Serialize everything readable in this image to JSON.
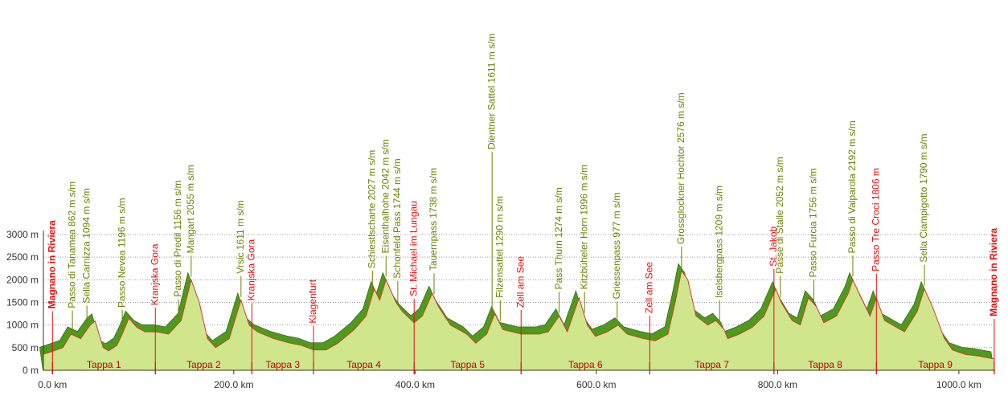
{
  "chart_data": {
    "type": "elevation-profile",
    "xlim": [
      -10,
      1040
    ],
    "ylim": [
      0,
      3000
    ],
    "xticks": [
      {
        "value": 0,
        "label": "0.0 km"
      },
      {
        "value": 200,
        "label": "200.0 km"
      },
      {
        "value": 400,
        "label": "400.0 km"
      },
      {
        "value": 600,
        "label": "600.0 km"
      },
      {
        "value": 800,
        "label": "800.0 km"
      },
      {
        "value": 1000,
        "label": "1000.0 km"
      }
    ],
    "yticks": [
      {
        "value": 0,
        "label": "0 m"
      },
      {
        "value": 500,
        "label": "500 m"
      },
      {
        "value": 1000,
        "label": "1000 m"
      },
      {
        "value": 1500,
        "label": "1500 m"
      },
      {
        "value": 2000,
        "label": "2000 m"
      },
      {
        "value": 2500,
        "label": "2500 m"
      },
      {
        "value": 3000,
        "label": "3000 m"
      }
    ],
    "grid": true,
    "fill_color": "#cfe68c",
    "shade_color": "#4e9a1c",
    "line_color": "#d83a2a",
    "profile": {
      "km": [
        -10.6,
        0,
        11.5,
        20.4,
        31,
        41.7,
        47,
        56,
        62,
        71,
        77,
        84.3,
        93,
        102,
        115,
        128,
        142,
        153,
        162,
        171,
        180,
        195,
        208,
        217,
        226,
        244,
        262,
        275,
        288,
        302,
        315,
        333,
        346,
        355,
        361,
        368,
        379,
        386,
        399,
        408,
        419,
        426,
        439,
        457,
        467,
        479,
        488,
        497,
        517,
        537,
        547,
        559,
        568,
        581,
        590,
        599,
        612,
        624,
        634,
        652,
        665,
        679,
        687,
        694,
        701,
        710,
        723,
        732,
        741,
        745,
        758,
        772,
        785,
        798,
        804,
        816,
        825,
        834,
        843,
        851,
        865,
        878,
        883,
        891,
        902,
        909,
        918,
        931,
        940,
        954,
        962,
        971,
        984,
        993,
        1007,
        1020,
        1039
      ],
      "elevation": [
        350,
        420,
        500,
        800,
        700,
        1000,
        1090,
        500,
        430,
        550,
        800,
        1150,
        950,
        850,
        850,
        800,
        1100,
        2000,
        1500,
        700,
        500,
        700,
        1550,
        1000,
        850,
        700,
        600,
        550,
        450,
        450,
        600,
        900,
        1200,
        1800,
        1550,
        2000,
        1500,
        1300,
        1050,
        1200,
        1700,
        1400,
        1000,
        800,
        600,
        800,
        1250,
        900,
        800,
        800,
        850,
        1200,
        850,
        1600,
        1000,
        750,
        850,
        1000,
        800,
        700,
        650,
        800,
        1500,
        2200,
        2000,
        1200,
        1000,
        1100,
        900,
        700,
        800,
        950,
        1200,
        1800,
        1500,
        1100,
        1000,
        1600,
        1400,
        1050,
        1200,
        1700,
        2000,
        1650,
        1200,
        1600,
        1100,
        950,
        850,
        1300,
        1800,
        1400,
        700,
        450,
        350,
        320,
        250
      ]
    },
    "stage_edges": [
      0,
      113.5,
      220,
      288,
      399,
      517,
      659,
      796,
      909,
      1039
    ],
    "stages": [
      "Tappa 1",
      "Tappa 2",
      "Tappa 3",
      "Tappa 4",
      "Tappa 5",
      "Tappa 6",
      "Tappa 7",
      "Tappa 8",
      "Tappa 9"
    ],
    "pass_color": "#6f8000",
    "town_color": "#e01010",
    "annotations": [
      {
        "text": "Magnano in Riviera",
        "km": 0,
        "kind": "town"
      },
      {
        "text": "Passo di Tanamea 862 m s/m",
        "km": 22,
        "kind": "pass"
      },
      {
        "text": "Sella Carnizza 1094 m s/m",
        "km": 38,
        "kind": "pass"
      },
      {
        "text": "Passo Nevea 1196 m s/m",
        "km": 77,
        "kind": "pass"
      },
      {
        "text": "Kranjska Gora",
        "km": 113.5,
        "kind": "town"
      },
      {
        "text": "Passo di Predil 1156 m s/m",
        "km": 139,
        "kind": "pass"
      },
      {
        "text": "Mangart 2055 m s/m",
        "km": 153,
        "kind": "pass"
      },
      {
        "text": "Vrsic 1611 m s/m",
        "km": 208,
        "kind": "pass"
      },
      {
        "text": "Kranjska Gora",
        "km": 220,
        "kind": "town"
      },
      {
        "text": "Klagenfurt",
        "km": 288,
        "kind": "town"
      },
      {
        "text": "Schiestlscharte 2027 m s/m",
        "km": 353,
        "kind": "pass"
      },
      {
        "text": "Eisenthalhohe 2042 m s/m",
        "km": 368,
        "kind": "pass"
      },
      {
        "text": "Schonfeld Pass 1744 m s/m",
        "km": 381,
        "kind": "pass"
      },
      {
        "text": "St. Michael im Lungau",
        "km": 399,
        "kind": "town"
      },
      {
        "text": "Tauernpass 1738 m s/m",
        "km": 421,
        "kind": "pass"
      },
      {
        "text": "Dientner Sattel 1611 m s/m",
        "km": 485,
        "kind": "pass"
      },
      {
        "text": "Filzensattel 1290 m s/m",
        "km": 494,
        "kind": "pass"
      },
      {
        "text": "Zell am See",
        "km": 517,
        "kind": "town"
      },
      {
        "text": "Pass Thurn 1274 m s/m",
        "km": 559,
        "kind": "pass"
      },
      {
        "text": "Kitzbüheler Horn 1996 m s/m",
        "km": 587,
        "kind": "pass"
      },
      {
        "text": "Griessenpass 977 m s/m",
        "km": 623,
        "kind": "pass"
      },
      {
        "text": "Zell am See",
        "km": 659,
        "kind": "town"
      },
      {
        "text": "Grossglockner Hochtor 2576 m s/m",
        "km": 694,
        "kind": "pass"
      },
      {
        "text": "Iselsbergpass 1209 m s/m",
        "km": 736,
        "kind": "pass"
      },
      {
        "text": "St. Jakob",
        "km": 796,
        "kind": "town"
      },
      {
        "text": "Passe di Stalle 2052 m s/m",
        "km": 803,
        "kind": "pass"
      },
      {
        "text": "Passo Furcia 1756 m s/m",
        "km": 840,
        "kind": "pass"
      },
      {
        "text": "Passo di Valparola 2192 m s/m",
        "km": 883,
        "kind": "pass"
      },
      {
        "text": "Passo Tre Croci 1806 m",
        "km": 909,
        "kind": "town"
      },
      {
        "text": "Sella Ciampigotto 1790 m s/m",
        "km": 962,
        "kind": "pass"
      },
      {
        "text": "Magnano in Riviera",
        "km": 1039,
        "kind": "town"
      }
    ]
  }
}
